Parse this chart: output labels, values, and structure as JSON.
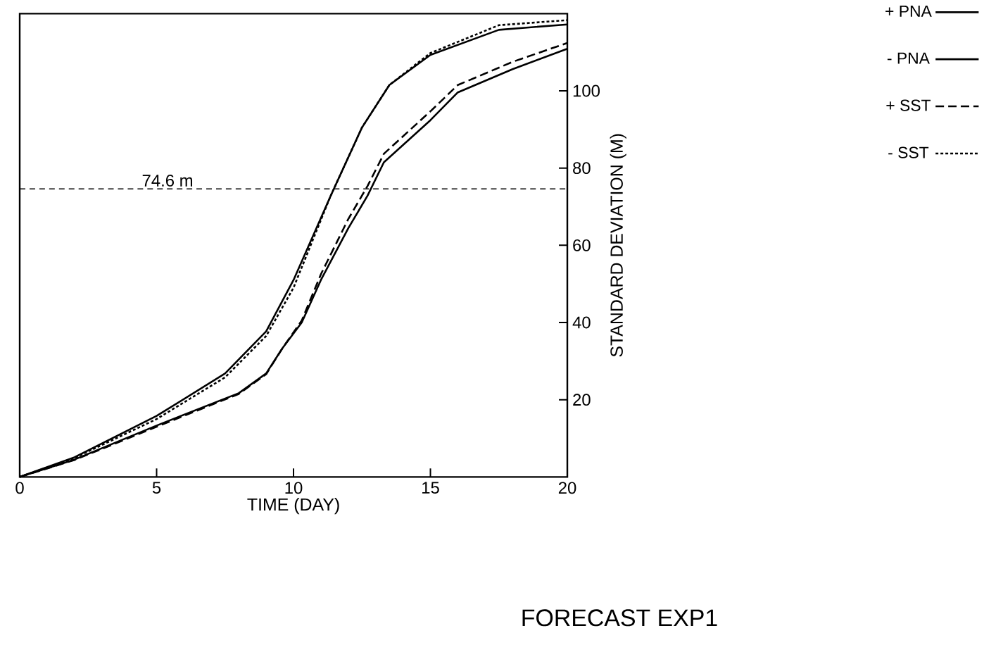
{
  "chart_data": {
    "type": "line",
    "title": "FORECAST EXP1",
    "xlabel": "TIME (DAY)",
    "ylabel": "STANDARD DEVIATION (M)",
    "xlim": [
      0,
      20
    ],
    "ylim": [
      0,
      120
    ],
    "xticks": [
      0,
      5,
      10,
      15,
      20
    ],
    "yticks": [
      20,
      40,
      60,
      80,
      100
    ],
    "legend": "right",
    "ref_lines": [
      {
        "axis": "y",
        "value": 74.6,
        "label": "74.6 m",
        "line_style": "dashed"
      }
    ],
    "series": [
      {
        "name": "+ PNA",
        "color": "#000000",
        "line_style": "solid",
        "x": [
          0,
          2,
          5,
          8,
          9,
          9.6,
          10.3,
          11,
          12,
          12.7,
          13.3,
          15,
          16,
          18,
          20
        ],
        "values": [
          0,
          4.5,
          13.3,
          21.7,
          26.8,
          33.4,
          40,
          51,
          64.4,
          72.8,
          81.5,
          92.4,
          99.6,
          105.6,
          110.9
        ]
      },
      {
        "name": "- PNA",
        "color": "#000000",
        "line_style": "solid",
        "x": [
          0,
          2,
          5,
          7.5,
          9,
          10,
          11.35,
          12.5,
          13.5,
          15,
          17.5,
          20
        ],
        "values": [
          0,
          5.1,
          15.8,
          26.8,
          37.7,
          51,
          72.7,
          90.5,
          101.5,
          109.3,
          115.8,
          117.2
        ]
      },
      {
        "name": "+ SST",
        "color": "#000000",
        "line_style": "dashed",
        "x": [
          0,
          2,
          5,
          8,
          9,
          9.6,
          10.3,
          11,
          12,
          12.7,
          13.3,
          15,
          16,
          18,
          20
        ],
        "values": [
          0,
          4.4,
          13,
          21.5,
          26.6,
          33.4,
          40.5,
          52.5,
          66.8,
          75.3,
          83.7,
          94.7,
          101.5,
          107.5,
          112.4
        ]
      },
      {
        "name": "- SST",
        "color": "#000000",
        "line_style": "dotted",
        "x": [
          0,
          2,
          5,
          7.5,
          9,
          10,
          11.35,
          12.5,
          13.5,
          15,
          17.5,
          20
        ],
        "values": [
          0,
          4.9,
          15,
          25.8,
          36.5,
          49,
          72.7,
          90.5,
          101.5,
          109.8,
          117,
          118.3
        ]
      }
    ]
  }
}
